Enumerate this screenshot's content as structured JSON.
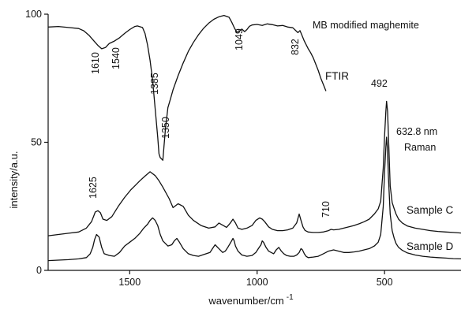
{
  "chart_data": {
    "type": "line",
    "title": "",
    "xlabel": "wavenumber/cm",
    "xlabel_superscript": "-1",
    "ylabel": "intensity/a.u.",
    "x_reversed": true,
    "xlim": [
      1820,
      200
    ],
    "ylim": [
      0,
      100
    ],
    "grid": false,
    "x_ticks": [
      1500,
      1000,
      500
    ],
    "x_tick_labels": [
      "1500",
      "1000",
      "500"
    ],
    "y_ticks": [
      0,
      50,
      100
    ],
    "y_tick_labels": [
      "0",
      "50",
      "100"
    ],
    "annotations": {
      "sample_title": "MB modified maghemite",
      "ftir_label": "FTIR",
      "laser_line": "632.8 nm",
      "raman_label": "Raman",
      "peak_labels": [
        "1610",
        "1540",
        "1385",
        "1350",
        "1049",
        "832",
        "1625",
        "710",
        "492"
      ]
    },
    "series": [
      {
        "name": "FTIR",
        "x": [
          1820,
          1780,
          1740,
          1700,
          1680,
          1660,
          1640,
          1625,
          1610,
          1595,
          1580,
          1560,
          1540,
          1520,
          1500,
          1480,
          1470,
          1450,
          1440,
          1430,
          1420,
          1410,
          1400,
          1390,
          1385,
          1380,
          1370,
          1360,
          1350,
          1340,
          1330,
          1310,
          1290,
          1270,
          1250,
          1230,
          1210,
          1190,
          1170,
          1150,
          1130,
          1110,
          1100,
          1090,
          1080,
          1070,
          1060,
          1049,
          1040,
          1030,
          1020,
          1000,
          980,
          960,
          940,
          920,
          900,
          880,
          860,
          840,
          832,
          825,
          815,
          800,
          790,
          780,
          770,
          760,
          750,
          740,
          730
        ],
        "values": [
          95.0,
          95.2,
          94.8,
          94.4,
          93.5,
          91.8,
          89.5,
          87.8,
          86.5,
          87.0,
          88.6,
          89.5,
          90.8,
          92.5,
          94.0,
          95.2,
          95.4,
          94.8,
          92.5,
          88.0,
          82.0,
          74.0,
          63.0,
          52.0,
          45.5,
          44.0,
          43.0,
          55.0,
          63.5,
          67.0,
          70.5,
          76.0,
          81.0,
          85.5,
          89.0,
          92.0,
          94.5,
          96.5,
          98.0,
          99.0,
          99.5,
          98.8,
          97.0,
          94.8,
          93.0,
          93.3,
          94.2,
          93.2,
          94.0,
          95.3,
          95.8,
          96.0,
          95.6,
          96.2,
          95.9,
          95.4,
          95.6,
          95.0,
          94.7,
          92.8,
          93.6,
          92.0,
          89.5,
          86.6,
          85.0,
          83.0,
          80.5,
          78.0,
          75.0,
          72.5,
          70.0
        ]
      },
      {
        "name": "Sample C",
        "x": [
          1820,
          1780,
          1740,
          1700,
          1670,
          1650,
          1640,
          1635,
          1625,
          1615,
          1605,
          1590,
          1570,
          1545,
          1520,
          1495,
          1480,
          1460,
          1440,
          1420,
          1400,
          1385,
          1370,
          1345,
          1330,
          1310,
          1290,
          1270,
          1250,
          1220,
          1190,
          1165,
          1150,
          1120,
          1105,
          1095,
          1085,
          1075,
          1060,
          1040,
          1020,
          1005,
          990,
          980,
          970,
          955,
          940,
          920,
          900,
          880,
          860,
          845,
          835,
          828,
          820,
          812,
          800,
          780,
          760,
          740,
          720,
          710,
          700,
          680,
          660,
          640,
          620,
          600,
          580,
          560,
          540,
          525,
          515,
          505,
          500,
          495,
          492,
          488,
          483,
          478,
          470,
          462,
          455,
          445,
          430,
          410,
          380,
          350,
          320,
          290,
          260,
          230,
          200
        ],
        "values": [
          13.5,
          14.0,
          14.5,
          15.0,
          16.5,
          19.0,
          21.5,
          22.8,
          23.3,
          22.5,
          20.0,
          19.5,
          21.0,
          25.0,
          28.5,
          31.5,
          33.0,
          35.0,
          36.8,
          38.5,
          37.0,
          35.0,
          32.5,
          28.0,
          24.5,
          26.0,
          25.0,
          21.5,
          19.5,
          17.5,
          16.5,
          17.0,
          18.5,
          16.8,
          18.5,
          20.0,
          18.5,
          16.5,
          16.0,
          16.5,
          17.5,
          19.5,
          20.5,
          20.0,
          19.0,
          17.0,
          16.0,
          15.5,
          15.5,
          15.8,
          16.5,
          18.5,
          22.0,
          19.5,
          17.0,
          15.6,
          15.0,
          14.8,
          14.8,
          15.0,
          15.5,
          16.0,
          15.8,
          16.0,
          16.5,
          17.0,
          17.5,
          18.2,
          19.0,
          20.0,
          22.0,
          24.0,
          27.0,
          40.0,
          52.0,
          62.0,
          66.0,
          62.0,
          48.0,
          33.0,
          26.5,
          24.0,
          22.0,
          20.0,
          18.5,
          17.3,
          16.5,
          16.0,
          15.5,
          15.2,
          15.0,
          14.8,
          14.6
        ]
      },
      {
        "name": "Sample D",
        "x": [
          1820,
          1780,
          1740,
          1700,
          1670,
          1655,
          1645,
          1638,
          1630,
          1620,
          1610,
          1600,
          1580,
          1560,
          1540,
          1520,
          1500,
          1480,
          1460,
          1445,
          1430,
          1420,
          1410,
          1400,
          1390,
          1380,
          1370,
          1350,
          1335,
          1325,
          1315,
          1305,
          1290,
          1270,
          1250,
          1230,
          1215,
          1200,
          1185,
          1175,
          1165,
          1150,
          1135,
          1125,
          1115,
          1100,
          1095,
          1090,
          1085,
          1075,
          1060,
          1040,
          1020,
          1005,
          995,
          985,
          980,
          975,
          965,
          955,
          945,
          935,
          925,
          915,
          905,
          895,
          885,
          870,
          855,
          845,
          835,
          828,
          822,
          815,
          808,
          800,
          780,
          760,
          740,
          720,
          700,
          680,
          660,
          640,
          620,
          600,
          580,
          560,
          540,
          525,
          515,
          505,
          500,
          495,
          492,
          489,
          484,
          478,
          470,
          462,
          455,
          445,
          430,
          410,
          380,
          350,
          320,
          290,
          260,
          230,
          200
        ],
        "values": [
          3.8,
          4.0,
          4.2,
          4.5,
          5.0,
          6.5,
          9.0,
          12.0,
          14.0,
          13.0,
          9.0,
          6.5,
          5.8,
          5.5,
          7.0,
          9.5,
          11.0,
          12.5,
          14.5,
          16.5,
          18.0,
          19.5,
          20.5,
          19.5,
          17.5,
          14.0,
          11.5,
          9.5,
          10.0,
          11.5,
          12.5,
          11.0,
          8.5,
          6.5,
          5.8,
          5.5,
          6.0,
          6.5,
          7.0,
          8.5,
          10.0,
          8.5,
          7.0,
          7.5,
          9.0,
          11.5,
          12.5,
          11.5,
          9.5,
          7.5,
          6.0,
          5.5,
          5.8,
          7.0,
          8.5,
          10.0,
          11.5,
          11.0,
          9.0,
          7.5,
          7.0,
          6.5,
          8.0,
          9.0,
          7.5,
          6.5,
          5.8,
          5.5,
          5.5,
          6.0,
          7.0,
          8.5,
          8.0,
          6.5,
          5.5,
          5.0,
          5.2,
          5.5,
          6.5,
          7.5,
          8.0,
          7.5,
          7.0,
          7.0,
          7.2,
          7.5,
          8.0,
          8.5,
          9.5,
          11.0,
          14.0,
          25.0,
          38.0,
          48.0,
          52.0,
          48.0,
          35.0,
          22.0,
          15.5,
          12.5,
          10.5,
          9.0,
          7.8,
          6.8,
          6.0,
          5.5,
          5.2,
          5.0,
          4.8,
          4.6,
          4.5
        ]
      }
    ]
  }
}
